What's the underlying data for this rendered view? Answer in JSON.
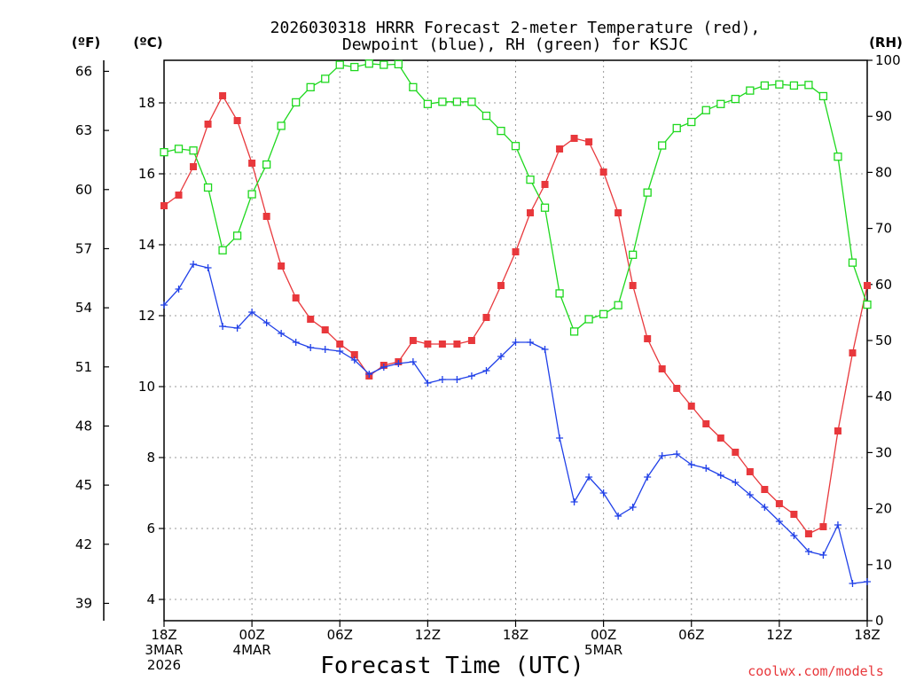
{
  "chart_data": {
    "type": "line",
    "title_lines": [
      "2026030318 HRRR Forecast 2-meter Temperature (red),",
      "Dewpoint (blue), RH (green) for KSJC"
    ],
    "xlabel": "Forecast Time (UTC)",
    "credit": "coolwx.com/models",
    "unit_labels": {
      "fahrenheit": "(ºF)",
      "celsius": "(ºC)",
      "rh": "(RH)"
    },
    "x_range_hours": [
      0,
      48
    ],
    "x_ticks": [
      {
        "hour": 0,
        "lines": [
          "18Z",
          "3MAR",
          "2026"
        ]
      },
      {
        "hour": 6,
        "lines": [
          "00Z",
          "4MAR"
        ]
      },
      {
        "hour": 12,
        "lines": [
          "06Z"
        ]
      },
      {
        "hour": 18,
        "lines": [
          "12Z"
        ]
      },
      {
        "hour": 24,
        "lines": [
          "18Z"
        ]
      },
      {
        "hour": 30,
        "lines": [
          "00Z",
          "5MAR"
        ]
      },
      {
        "hour": 36,
        "lines": [
          "06Z"
        ]
      },
      {
        "hour": 42,
        "lines": [
          "12Z"
        ]
      },
      {
        "hour": 48,
        "lines": [
          "18Z"
        ]
      }
    ],
    "celsius_axis": {
      "range": [
        3.4,
        19.2
      ],
      "ticks": [
        "4",
        "6",
        "8",
        "10",
        "12",
        "14",
        "16",
        "18"
      ]
    },
    "fahrenheit_axis": {
      "ticks": [
        "39",
        "42",
        "45",
        "48",
        "51",
        "54",
        "57",
        "60",
        "63",
        "66"
      ]
    },
    "rh_axis": {
      "range": [
        0,
        100
      ],
      "ticks": [
        "0",
        "10",
        "20",
        "30",
        "40",
        "50",
        "60",
        "70",
        "80",
        "90",
        "100"
      ]
    },
    "series": [
      {
        "name": "Temperature",
        "unit": "°C",
        "color": "#e8383c",
        "marker": "filled-square",
        "values": [
          15.1,
          15.4,
          16.2,
          17.4,
          18.2,
          17.5,
          16.3,
          14.8,
          13.4,
          12.5,
          11.9,
          11.6,
          11.2,
          10.9,
          10.3,
          10.6,
          10.7,
          11.3,
          11.2,
          11.2,
          11.2,
          11.3,
          11.95,
          12.85,
          13.8,
          14.9,
          15.7,
          16.7,
          17.0,
          16.9,
          16.05,
          14.9,
          12.85,
          11.35,
          10.5,
          9.95,
          9.45,
          8.95,
          8.55,
          8.15,
          7.6,
          7.1,
          6.7,
          6.4,
          5.85,
          6.05,
          8.75,
          10.95,
          12.85
        ]
      },
      {
        "name": "Dewpoint",
        "unit": "°C",
        "color": "#2040e8",
        "marker": "plus",
        "values": [
          12.3,
          12.75,
          13.45,
          13.35,
          11.7,
          11.65,
          12.1,
          11.8,
          11.5,
          11.25,
          11.1,
          11.05,
          11.0,
          10.75,
          10.35,
          10.55,
          10.65,
          10.7,
          10.1,
          10.2,
          10.2,
          10.3,
          10.45,
          10.85,
          11.25,
          11.25,
          11.05,
          8.55,
          6.75,
          7.45,
          7.0,
          6.35,
          6.6,
          7.45,
          8.05,
          8.1,
          7.8,
          7.7,
          7.5,
          7.3,
          6.95,
          6.6,
          6.2,
          5.8,
          5.35,
          5.25,
          6.1,
          4.45,
          4.5
        ]
      },
      {
        "name": "RH",
        "unit": "%",
        "color": "#1ed81e",
        "marker": "open-square",
        "values": [
          83.6,
          84.2,
          83.9,
          77.3,
          66.1,
          68.7,
          76.1,
          81.4,
          88.3,
          92.5,
          95.2,
          96.7,
          99.2,
          98.8,
          99.4,
          99.2,
          99.3,
          95.2,
          92.2,
          92.6,
          92.6,
          92.6,
          90.1,
          87.4,
          84.7,
          78.7,
          73.7,
          58.4,
          51.6,
          53.8,
          54.7,
          56.3,
          65.3,
          76.4,
          84.8,
          87.9,
          89.0,
          91.1,
          92.2,
          93.1,
          94.6,
          95.5,
          95.7,
          95.5,
          95.6,
          93.6,
          82.8,
          63.9,
          56.4
        ]
      }
    ]
  }
}
